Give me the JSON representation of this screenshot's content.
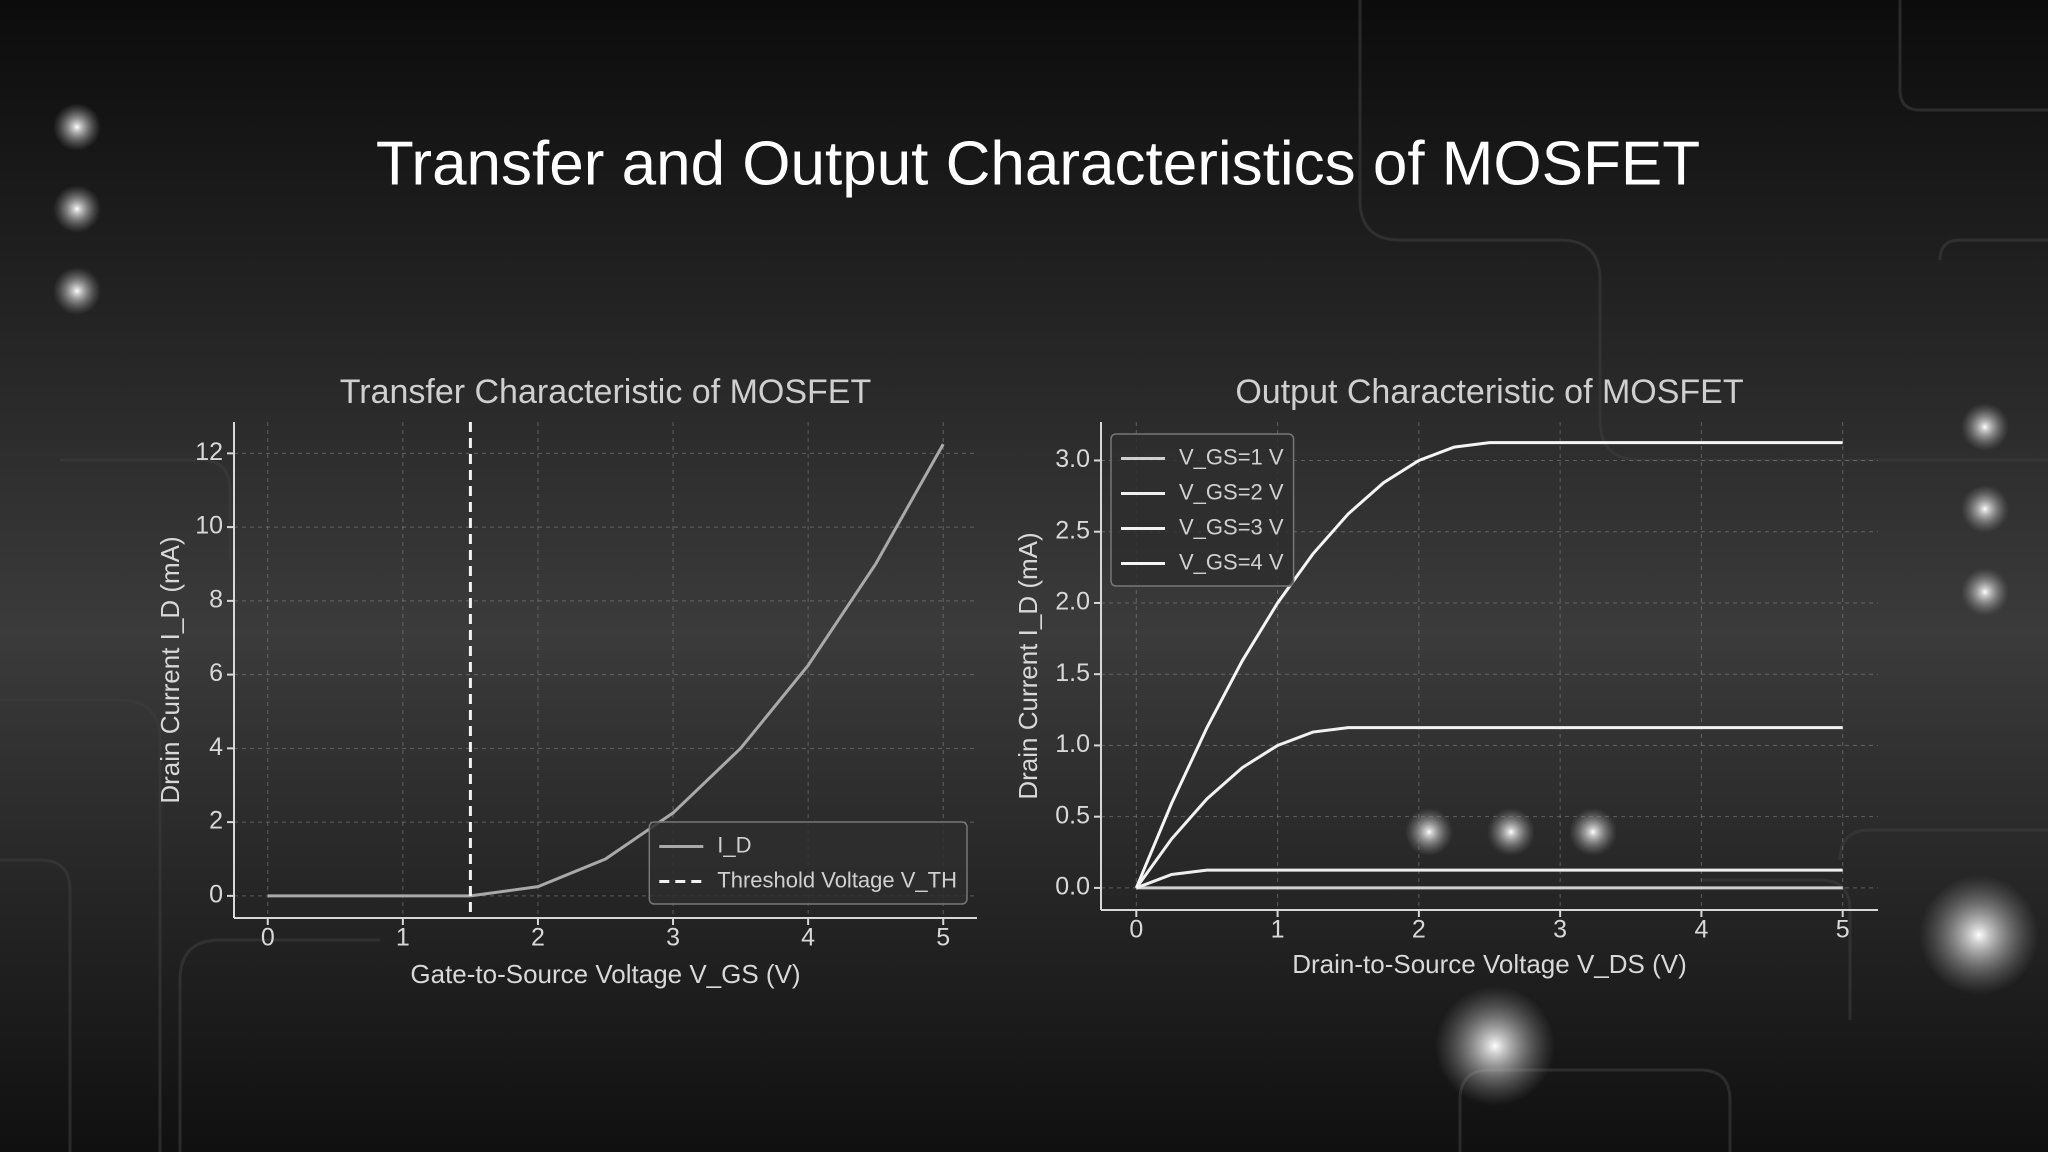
{
  "title": "Transfer and Output Characteristics of MOSFET",
  "chart_data": [
    {
      "type": "line",
      "title": "Transfer Characteristic of MOSFET",
      "x_label": "Gate-to-Source Voltage V_GS (V)",
      "y_label": "Drain Current I_D (mA)",
      "x": [
        0,
        0.5,
        1,
        1.5,
        2,
        2.5,
        3,
        3.5,
        4,
        4.5,
        5
      ],
      "series": [
        {
          "name": "I_D",
          "color": "#a9a9a9",
          "values": [
            0,
            0,
            0,
            0,
            0.25,
            1,
            2.25,
            4,
            6.25,
            9,
            12.25
          ]
        }
      ],
      "vlines": [
        {
          "name": "Threshold Voltage V_TH",
          "x": 1.5,
          "color": "#f2f2f2",
          "style": "dashed"
        }
      ],
      "xlim": [
        -0.25,
        5.25
      ],
      "ylim": [
        -0.6,
        12.85
      ],
      "xticks": [
        0,
        1,
        2,
        3,
        4,
        5
      ],
      "yticks": [
        0,
        2,
        4,
        6,
        8,
        10,
        12
      ],
      "grid": true,
      "legend": "lower right"
    },
    {
      "type": "line",
      "title": "Output Characteristic of MOSFET",
      "x_label": "Drain-to-Source Voltage V_DS (V)",
      "y_label": "Drain Current I_D (mA)",
      "x": [
        0,
        0.25,
        0.5,
        0.75,
        1,
        1.25,
        1.5,
        1.75,
        2,
        2.25,
        2.5,
        3,
        3.5,
        4,
        4.5,
        5
      ],
      "series": [
        {
          "name": "V_GS=1 V",
          "color": "#cfcfcf",
          "values": [
            0,
            0,
            0,
            0,
            0,
            0,
            0,
            0,
            0,
            0,
            0,
            0,
            0,
            0,
            0,
            0
          ]
        },
        {
          "name": "V_GS=2 V",
          "color": "#eeeeee",
          "values": [
            0,
            0.094,
            0.125,
            0.125,
            0.125,
            0.125,
            0.125,
            0.125,
            0.125,
            0.125,
            0.125,
            0.125,
            0.125,
            0.125,
            0.125,
            0.125
          ]
        },
        {
          "name": "V_GS=3 V",
          "color": "#f2f2f2",
          "values": [
            0,
            0.344,
            0.625,
            0.844,
            1.0,
            1.094,
            1.125,
            1.125,
            1.125,
            1.125,
            1.125,
            1.125,
            1.125,
            1.125,
            1.125,
            1.125
          ]
        },
        {
          "name": "V_GS=4 V",
          "color": "#f5f5f5",
          "values": [
            0,
            0.594,
            1.125,
            1.594,
            2.0,
            2.344,
            2.625,
            2.844,
            3.0,
            3.094,
            3.125,
            3.125,
            3.125,
            3.125,
            3.125,
            3.125
          ]
        }
      ],
      "xlim": [
        -0.25,
        5.25
      ],
      "ylim": [
        -0.155,
        3.27
      ],
      "xticks": [
        0,
        1,
        2,
        3,
        4,
        5
      ],
      "yticks": [
        {
          "value": 0,
          "label": "0.0"
        },
        {
          "value": 0.5,
          "label": "0.5"
        },
        {
          "value": 1,
          "label": "1.0"
        },
        {
          "value": 1.5,
          "label": "1.5"
        },
        {
          "value": 2,
          "label": "2.0"
        },
        {
          "value": 2.5,
          "label": "2.5"
        },
        {
          "value": 3,
          "label": "3.0"
        }
      ],
      "grid": true,
      "legend": "upper left"
    }
  ]
}
